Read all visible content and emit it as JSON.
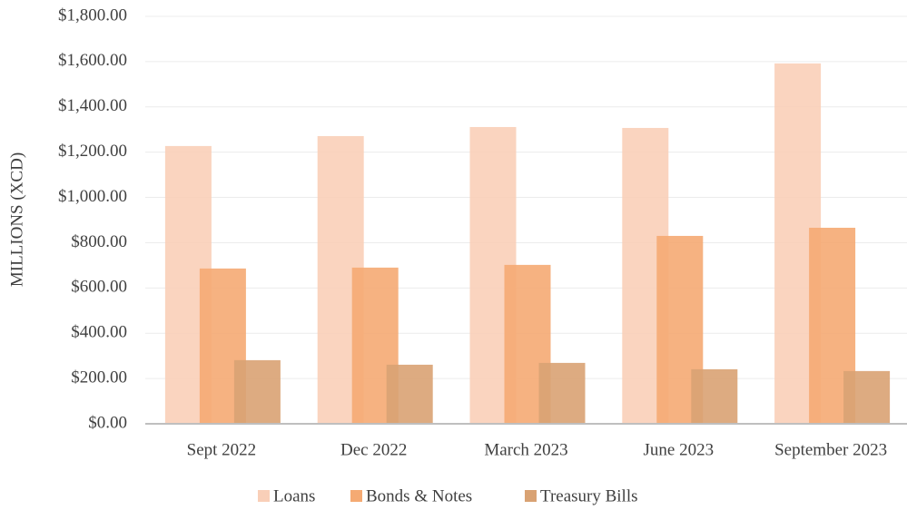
{
  "chart_data": {
    "type": "bar",
    "ylabel": "MILLIONS (XCD)",
    "categories": [
      "Sept 2022",
      "Dec 2022",
      "March 2023",
      "June 2023",
      "September 2023"
    ],
    "series": [
      {
        "name": "Loans",
        "color": "#f9cfb8",
        "values": [
          1227,
          1271,
          1311,
          1307,
          1592
        ]
      },
      {
        "name": "Bonds & Notes",
        "color": "#f5aa73",
        "values": [
          686,
          690,
          702,
          830,
          866
        ]
      },
      {
        "name": "Treasury Bills",
        "color": "#d9a273",
        "values": [
          281,
          261,
          269,
          241,
          233
        ]
      }
    ],
    "ylim": [
      0,
      1800
    ],
    "yticks": [
      {
        "value": 0,
        "label": "$0.00"
      },
      {
        "value": 200,
        "label": "$200.00"
      },
      {
        "value": 400,
        "label": "$400.00"
      },
      {
        "value": 600,
        "label": "$600.00"
      },
      {
        "value": 800,
        "label": "$800.00"
      },
      {
        "value": 1000,
        "label": "$1,000.00"
      },
      {
        "value": 1200,
        "label": "$1,200.00"
      },
      {
        "value": 1400,
        "label": "$1,400.00"
      },
      {
        "value": 1600,
        "label": "$1,600.00"
      },
      {
        "value": 1800,
        "label": "$1,800.00"
      }
    ],
    "grid": true,
    "legend": "bottom"
  }
}
